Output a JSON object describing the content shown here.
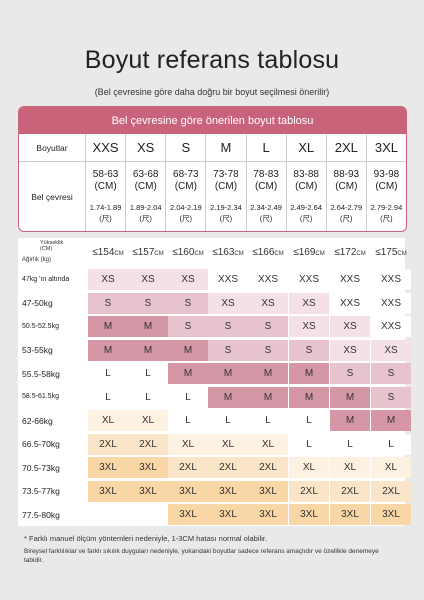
{
  "title": "Boyut referans tablosu",
  "subtitle": "(Bel çevresine göre daha doğru bir boyut seçilmesi önerilir)",
  "table1": {
    "header": "Bel çevresine göre önerilen boyut tablosu",
    "row1_label": "Boyutlar",
    "row2_label": "Bel çevresi",
    "columns": [
      {
        "size": "XXS",
        "cm": "58-63",
        "unit": "(CM)",
        "hip": "1.74-1.89",
        "hip_unit": "(尺)"
      },
      {
        "size": "XS",
        "cm": "63-68",
        "unit": "(CM)",
        "hip": "1.89-2.04",
        "hip_unit": "(尺)"
      },
      {
        "size": "S",
        "cm": "68-73",
        "unit": "(CM)",
        "hip": "2.04-2.19",
        "hip_unit": "(尺)"
      },
      {
        "size": "M",
        "cm": "73-78",
        "unit": "(CM)",
        "hip": "2.19-2.34",
        "hip_unit": "(尺)"
      },
      {
        "size": "L",
        "cm": "78-83",
        "unit": "(CM)",
        "hip": "2.34-2.49",
        "hip_unit": "(尺)"
      },
      {
        "size": "XL",
        "cm": "83-88",
        "unit": "(CM)",
        "hip": "2.49-2.64",
        "hip_unit": "(尺)"
      },
      {
        "size": "2XL",
        "cm": "88-93",
        "unit": "(CM)",
        "hip": "2.64-2.79",
        "hip_unit": "(尺)"
      },
      {
        "size": "3XL",
        "cm": "93-98",
        "unit": "(CM)",
        "hip": "2.79-2.94",
        "hip_unit": "(尺)"
      }
    ]
  },
  "table2": {
    "height_label_1": "Yükseklik",
    "height_label_2": "(CM)",
    "weight_label": "Ağırlık (kg)",
    "heights": [
      {
        "value": "≤154",
        "unit": "CM"
      },
      {
        "value": "≤157",
        "unit": "CM"
      },
      {
        "value": "≤160",
        "unit": "CM"
      },
      {
        "value": "≤163",
        "unit": "CM"
      },
      {
        "value": "≤166",
        "unit": "CM"
      },
      {
        "value": "≤169",
        "unit": "CM"
      },
      {
        "value": "≤172",
        "unit": "CM"
      },
      {
        "value": "≤175",
        "unit": "CM"
      }
    ],
    "rows": [
      {
        "weight": "47kg 'ın altında",
        "cells": [
          "XS",
          "XS",
          "XS",
          "XXS",
          "XXS",
          "XXS",
          "XXS",
          "XXS"
        ]
      },
      {
        "weight": "47-50kg",
        "cells": [
          "S",
          "S",
          "S",
          "XS",
          "XS",
          "XS",
          "XXS",
          "XXS"
        ]
      },
      {
        "weight": "50.5-52.5kg",
        "cells": [
          "M",
          "M",
          "S",
          "S",
          "S",
          "XS",
          "XS",
          "XXS"
        ]
      },
      {
        "weight": "53-55kg",
        "cells": [
          "M",
          "M",
          "M",
          "S",
          "S",
          "S",
          "XS",
          "XS"
        ]
      },
      {
        "weight": "55.5-58kg",
        "cells": [
          "L",
          "L",
          "M",
          "M",
          "M",
          "M",
          "S",
          "S"
        ]
      },
      {
        "weight": "58.5-61.5kg",
        "cells": [
          "L",
          "L",
          "L",
          "M",
          "M",
          "M",
          "M",
          "S"
        ]
      },
      {
        "weight": "62-66kg",
        "cells": [
          "XL",
          "XL",
          "L",
          "L",
          "L",
          "L",
          "M",
          "M"
        ]
      },
      {
        "weight": "66.5-70kg",
        "cells": [
          "2XL",
          "2XL",
          "XL",
          "XL",
          "XL",
          "L",
          "L",
          "L"
        ]
      },
      {
        "weight": "70.5-73kg",
        "cells": [
          "3XL",
          "3XL",
          "2XL",
          "2XL",
          "2XL",
          "XL",
          "XL",
          "XL"
        ]
      },
      {
        "weight": "73.5-77kg",
        "cells": [
          "3XL",
          "3XL",
          "3XL",
          "3XL",
          "3XL",
          "2XL",
          "2XL",
          "2XL"
        ]
      },
      {
        "weight": "77.5-80kg",
        "cells": [
          "",
          "",
          "3XL",
          "3XL",
          "3XL",
          "3XL",
          "3XL",
          "3XL"
        ]
      }
    ],
    "size_colors": {
      "XXS": "#ffffff",
      "XS": "#f3e1e6",
      "S": "#e6c3cd",
      "M": "#d597a6",
      "L": "#ffffff",
      "XL": "#fdf2e2",
      "2XL": "#fbe5c8",
      "3XL": "#f8d6a6"
    }
  },
  "footnote1": "* Farklı manuel ölçüm yöntemleri nedeniyle, 1-3CM hatası normal olabilir.",
  "footnote2": "Bireysel farklılıklar ve farklı sıkılık duyguları nedeniyle, yukarıdaki boyutlar sadece referans amaçlıdır ve özellikle denemeye tabidir."
}
